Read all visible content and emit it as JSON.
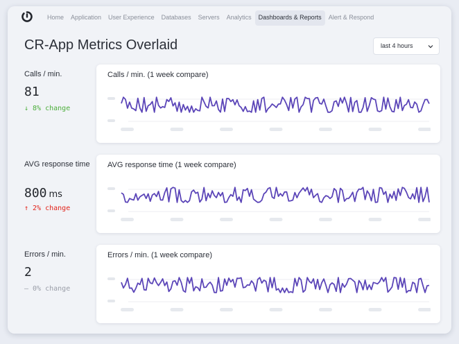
{
  "nav": {
    "items": [
      "Home",
      "Application",
      "User Experience",
      "Databases",
      "Servers",
      "Analytics",
      "Dashboards & Reports",
      "Alert & Respond"
    ],
    "active": "Dashboards & Reports"
  },
  "page": {
    "title": "CR-App Metrics Overlaid",
    "time_range": "last 4 hours"
  },
  "metrics": [
    {
      "label": "Calls / min.",
      "value": "81",
      "unit": "",
      "change": "↓ 8% change",
      "change_direction": "down",
      "chart_title": "Calls / min. (1 week compare)"
    },
    {
      "label": "AVG response time",
      "value": "800",
      "unit": "ms",
      "change": "↑ 2% change",
      "change_direction": "up",
      "chart_title": "AVG response time (1 week compare)"
    },
    {
      "label": "Errors / min.",
      "value": "2",
      "unit": "",
      "change": "— 0% change",
      "change_direction": "flat",
      "chart_title": "Errors / min. (1 week compare)"
    }
  ],
  "colors": {
    "line": "#5b45b8",
    "change_down": "#4cae3b",
    "change_up": "#e2231a",
    "change_flat": "#9a9ea8"
  }
}
